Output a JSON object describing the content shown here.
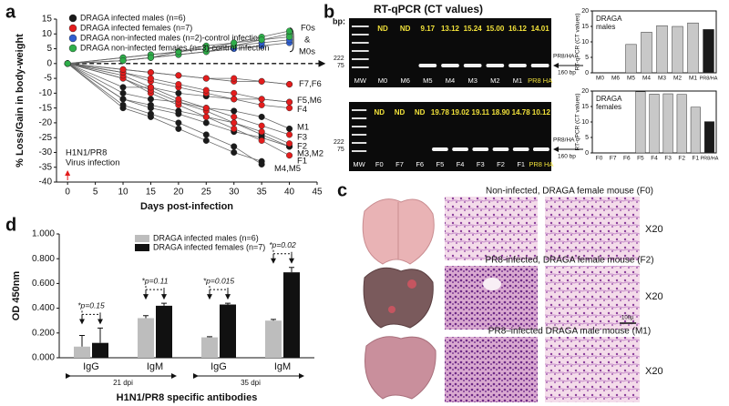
{
  "panels": [
    "a",
    "b",
    "c",
    "d"
  ],
  "chart_data": [
    {
      "type": "line",
      "xlabel": "Days post-infection",
      "ylabel": "% Loss/Gain in body-weight",
      "x": [
        0,
        10,
        15,
        20,
        25,
        30,
        35,
        40
      ],
      "xlim": [
        -2,
        45
      ],
      "xticks": [
        0,
        5,
        10,
        15,
        20,
        25,
        30,
        35,
        40,
        45
      ],
      "ylim": [
        -40,
        15
      ],
      "yticks": [
        -40,
        -35,
        -30,
        -25,
        -20,
        -15,
        -10,
        -5,
        0,
        5,
        10,
        15
      ],
      "series": [
        {
          "name": "DRAGA infected males (n=6)",
          "color": "#1a1a1a",
          "values": [
            [
              0,
              -10,
              -12,
              -13,
              -15,
              -16,
              -18,
              -22
            ],
            [
              0,
              -12,
              -14,
              -16,
              -18,
              -20,
              -24,
              -28
            ],
            [
              0,
              -12,
              -15,
              -17,
              -20,
              -23,
              -25,
              -28
            ],
            [
              0,
              -14,
              -17,
              -20,
              -24,
              -28,
              -34,
              null
            ],
            [
              0,
              -15,
              -18,
              -22,
              -26,
              -30,
              -33,
              null
            ],
            [
              0,
              -8,
              -8,
              -10,
              -11,
              -12,
              -12,
              -13
            ]
          ]
        },
        {
          "name": "DRAGA infected females (n=7)",
          "color": "#e31d1d",
          "values": [
            [
              0,
              -5,
              -10,
              -14,
              -18,
              -22,
              -26,
              -31
            ],
            [
              0,
              -5,
              -9,
              -13,
              -16,
              -20,
              -23,
              -27
            ],
            [
              0,
              -4,
              -8,
              -12,
              -15,
              -18,
              -21,
              -24
            ],
            [
              0,
              -3,
              -6,
              -8,
              -10,
              -12,
              -14,
              -15
            ],
            [
              0,
              -3,
              -5,
              -7,
              -9,
              -10,
              -12,
              -13
            ],
            [
              0,
              -2,
              -3,
              -4,
              -5,
              -6,
              -6,
              -7
            ],
            [
              0,
              -2,
              -3,
              -4,
              -5,
              -5,
              -6,
              -7
            ]
          ]
        },
        {
          "name": "DRAGA non-infected males (n=2)-control infection",
          "color": "#2f5fd0",
          "values": [
            [
              0,
              1,
              2,
              3,
              4,
              5,
              6,
              7
            ],
            [
              0,
              2,
              3,
              4,
              5,
              6,
              7,
              8
            ]
          ]
        },
        {
          "name": "DRAGA non-infected females (n=3)-control infection",
          "color": "#2fae4a",
          "values": [
            [
              0,
              1,
              2,
              3,
              4,
              6,
              8,
              10
            ],
            [
              0,
              2,
              3,
              4,
              6,
              7,
              9,
              11
            ],
            [
              0,
              1,
              2,
              4,
              5,
              7,
              8,
              9
            ]
          ]
        }
      ],
      "annotations": [
        "F0s",
        "&",
        "M0s",
        "F7,F6",
        "F5,M6",
        "F4",
        "M1",
        "F3",
        "F2",
        "M3,M2",
        "F1",
        "M4,M5",
        "H1N1/PR8",
        "Virus infection"
      ]
    },
    {
      "type": "bar",
      "label": [
        "DRAGA",
        "males"
      ],
      "ylabel": "RT-qPCR (CT values)",
      "categories": [
        "M0",
        "M6",
        "M5",
        "M4",
        "M3",
        "M2",
        "M1",
        "PR8/HA"
      ],
      "values": [
        null,
        null,
        9.17,
        13.12,
        15.24,
        15.0,
        16.12,
        14.01
      ],
      "colors": [
        "#c8c8c8",
        "#c8c8c8",
        "#c8c8c8",
        "#c8c8c8",
        "#c8c8c8",
        "#c8c8c8",
        "#c8c8c8",
        "#1a1a1a"
      ],
      "ylim": [
        0,
        20
      ],
      "yticks": [
        0,
        5,
        10,
        15,
        20
      ]
    },
    {
      "type": "bar",
      "label": [
        "DRAGA",
        "females"
      ],
      "ylabel": "RT-qPCR (CT values)",
      "categories": [
        "F0",
        "F7",
        "F6",
        "F5",
        "F4",
        "F3",
        "F2",
        "F1",
        "PR8/HA"
      ],
      "values": [
        null,
        null,
        null,
        19.78,
        19.02,
        19.11,
        18.9,
        14.78,
        10.12
      ],
      "colors": [
        "#c8c8c8",
        "#c8c8c8",
        "#c8c8c8",
        "#c8c8c8",
        "#c8c8c8",
        "#c8c8c8",
        "#c8c8c8",
        "#c8c8c8",
        "#1a1a1a"
      ],
      "ylim": [
        0,
        20
      ],
      "yticks": [
        0,
        5,
        10,
        15,
        20
      ]
    },
    {
      "type": "grouped_bar",
      "ylabel": "OD 450nm",
      "xlabel": "H1N1/PR8 specific antibodies",
      "categories": [
        "IgG",
        "IgM",
        "IgG",
        "IgM"
      ],
      "groups": [
        "21 dpi",
        "35 dpi"
      ],
      "series": [
        {
          "name": "DRAGA infected males (n=6)",
          "color": "#bdbdbd",
          "values": [
            0.09,
            0.32,
            0.165,
            0.3
          ],
          "errors": [
            0.09,
            0.02,
            0.005,
            0.01
          ]
        },
        {
          "name": "DRAGA infected females (n=7)",
          "color": "#111111",
          "values": [
            0.12,
            0.42,
            0.43,
            0.69
          ],
          "errors": [
            0.12,
            0.02,
            0.01,
            0.04
          ]
        }
      ],
      "ylim": [
        0,
        1
      ],
      "yticks": [
        {
          "value": 0,
          "label": "0.000"
        },
        {
          "value": 0.2,
          "label": "0.200"
        },
        {
          "value": 0.4,
          "label": "0.400"
        },
        {
          "value": 0.6,
          "label": "0.600"
        },
        {
          "value": 0.8,
          "label": "0.800"
        },
        {
          "value": 1,
          "label": "1.000"
        }
      ],
      "pvalues": [
        "*p=0.15",
        "*p=0.11",
        "*p=0.015",
        "*p=0.02"
      ]
    }
  ],
  "gel": {
    "title": "RT-qPCR (CT values)",
    "bp_label": "bp:",
    "markers": [
      "222",
      "75"
    ],
    "band_label": "PR8/HA",
    "size_label": "160 bp",
    "top": {
      "lanes": [
        "MW",
        "M0",
        "M6",
        "M5",
        "M4",
        "M3",
        "M2",
        "M1",
        "PR8 HA"
      ],
      "ct": [
        "ND",
        "ND",
        "9.17",
        "13.12",
        "15.24",
        "15.00",
        "16.12",
        "14.01"
      ]
    },
    "bottom": {
      "lanes": [
        "MW",
        "F0",
        "F7",
        "F6",
        "F5",
        "F4",
        "F3",
        "F2",
        "F1",
        "PR8 HA"
      ],
      "ct": [
        "ND",
        "ND",
        "ND",
        "19.78",
        "19.02",
        "19.11",
        "18.90",
        "14.78",
        "10.12"
      ]
    }
  },
  "histology": {
    "captions": [
      "Non-infected, DRAGA female mouse (F0)",
      "PR8-infected, DRAGA female mouse (F2)",
      "PR8–infected DRAGA male mouse (M1)"
    ],
    "magnification": "X20",
    "scale": "100µ"
  }
}
